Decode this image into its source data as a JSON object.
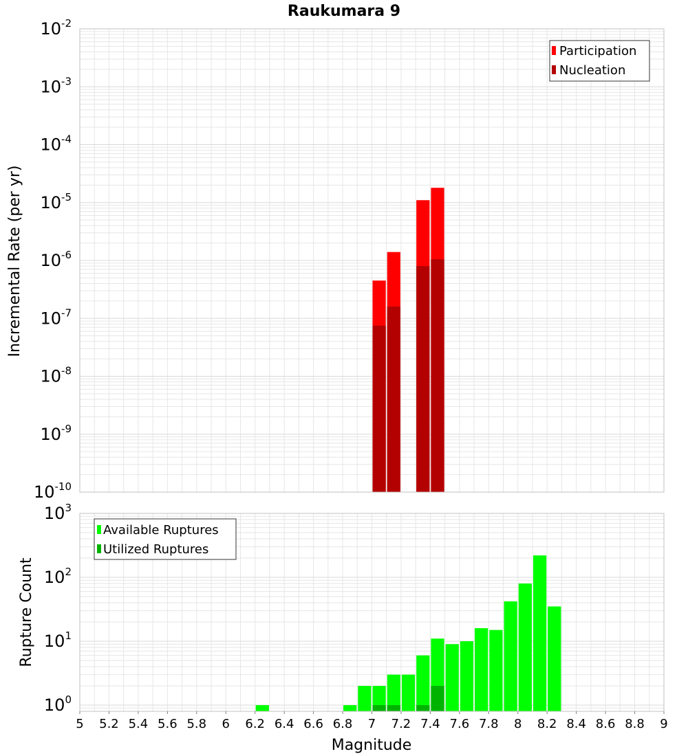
{
  "title": "Raukumara 9",
  "colors": {
    "participation": "#ff0000",
    "nucleation": "#b30000",
    "available": "#00ff00",
    "utilized": "#00b300",
    "grid": "#e6e6e6",
    "frame": "#c0c0c0"
  },
  "chart_data": [
    {
      "type": "bar",
      "ylabel": "Incremental Rate (per yr)",
      "yscale": "log",
      "ylim": [
        1e-10,
        0.01
      ],
      "xlim": [
        5,
        9
      ],
      "bin_width": 0.1,
      "grid": true,
      "legend_position": "top-right",
      "series": [
        {
          "name": "Participation",
          "color": "#ff0000",
          "points": [
            [
              7.05,
              4.5e-07
            ],
            [
              7.15,
              1.4e-06
            ],
            [
              7.35,
              1.1e-05
            ],
            [
              7.45,
              1.8e-05
            ]
          ]
        },
        {
          "name": "Nucleation",
          "color": "#b30000",
          "points": [
            [
              7.05,
              7.5e-08
            ],
            [
              7.15,
              1.6e-07
            ],
            [
              7.35,
              8e-07
            ],
            [
              7.45,
              1.05e-06
            ]
          ]
        }
      ]
    },
    {
      "type": "bar",
      "ylabel": "Rupture Count",
      "xlabel": "Magnitude",
      "yscale": "log",
      "ylim": [
        0.8,
        1000
      ],
      "xlim": [
        5,
        9
      ],
      "bin_width": 0.1,
      "grid": true,
      "legend_position": "top-left",
      "series": [
        {
          "name": "Available Ruptures",
          "color": "#00ff00",
          "points": [
            [
              6.25,
              1
            ],
            [
              6.85,
              1
            ],
            [
              6.95,
              2
            ],
            [
              7.05,
              2
            ],
            [
              7.15,
              3
            ],
            [
              7.25,
              3
            ],
            [
              7.35,
              6
            ],
            [
              7.45,
              11
            ],
            [
              7.55,
              9
            ],
            [
              7.65,
              10
            ],
            [
              7.75,
              16
            ],
            [
              7.85,
              15
            ],
            [
              7.95,
              42
            ],
            [
              8.05,
              80
            ],
            [
              8.15,
              220
            ],
            [
              8.25,
              35
            ]
          ]
        },
        {
          "name": "Utilized Ruptures",
          "color": "#00b300",
          "points": [
            [
              7.05,
              1
            ],
            [
              7.15,
              1
            ],
            [
              7.35,
              1
            ],
            [
              7.45,
              2
            ]
          ]
        }
      ]
    }
  ],
  "x_ticks": [
    "5",
    "5.2",
    "5.4",
    "5.6",
    "5.8",
    "6",
    "6.2",
    "6.4",
    "6.6",
    "6.8",
    "7",
    "7.2",
    "7.4",
    "7.6",
    "7.8",
    "8",
    "8.2",
    "8.4",
    "8.6",
    "8.8",
    "9"
  ],
  "top_y_ticks": [
    {
      "base": "10",
      "exp": "-2"
    },
    {
      "base": "10",
      "exp": "-3"
    },
    {
      "base": "10",
      "exp": "-4"
    },
    {
      "base": "10",
      "exp": "-5"
    },
    {
      "base": "10",
      "exp": "-6"
    },
    {
      "base": "10",
      "exp": "-7"
    },
    {
      "base": "10",
      "exp": "-8"
    },
    {
      "base": "10",
      "exp": "-9"
    },
    {
      "base": "10",
      "exp": "-10"
    }
  ],
  "bottom_y_ticks": [
    {
      "base": "10",
      "exp": "3"
    },
    {
      "base": "10",
      "exp": "2"
    },
    {
      "base": "10",
      "exp": "1"
    },
    {
      "base": "10",
      "exp": "0"
    }
  ]
}
